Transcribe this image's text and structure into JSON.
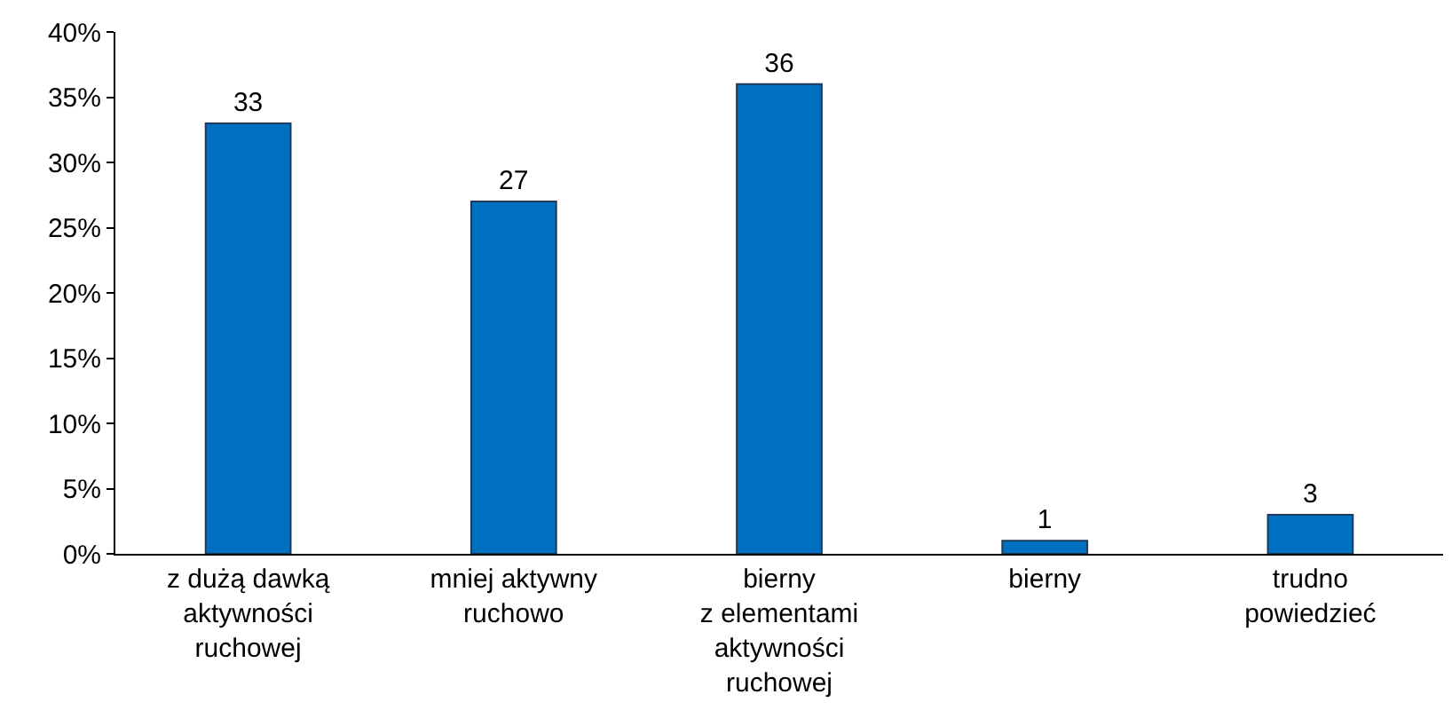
{
  "chart_data": {
    "type": "bar",
    "categories": [
      "z dużą dawką\naktywności\nruchowej",
      "mniej aktywny\nruchowo",
      "bierny\nz elementami\naktywności\nruchowej",
      "bierny",
      "trudno\npowiedzieć"
    ],
    "values": [
      33,
      27,
      36,
      1,
      3
    ],
    "color": "#0070c0",
    "ylim": [
      0,
      40
    ],
    "yticks": [
      {
        "value": 0,
        "label": "0%"
      },
      {
        "value": 5,
        "label": "5%"
      },
      {
        "value": 10,
        "label": "10%"
      },
      {
        "value": 15,
        "label": "15%"
      },
      {
        "value": 20,
        "label": "20%"
      },
      {
        "value": 25,
        "label": "25%"
      },
      {
        "value": 30,
        "label": "30%"
      },
      {
        "value": 35,
        "label": "35%"
      },
      {
        "value": 40,
        "label": "40%"
      }
    ],
    "data_labels": true,
    "grid": false,
    "legend": false
  }
}
